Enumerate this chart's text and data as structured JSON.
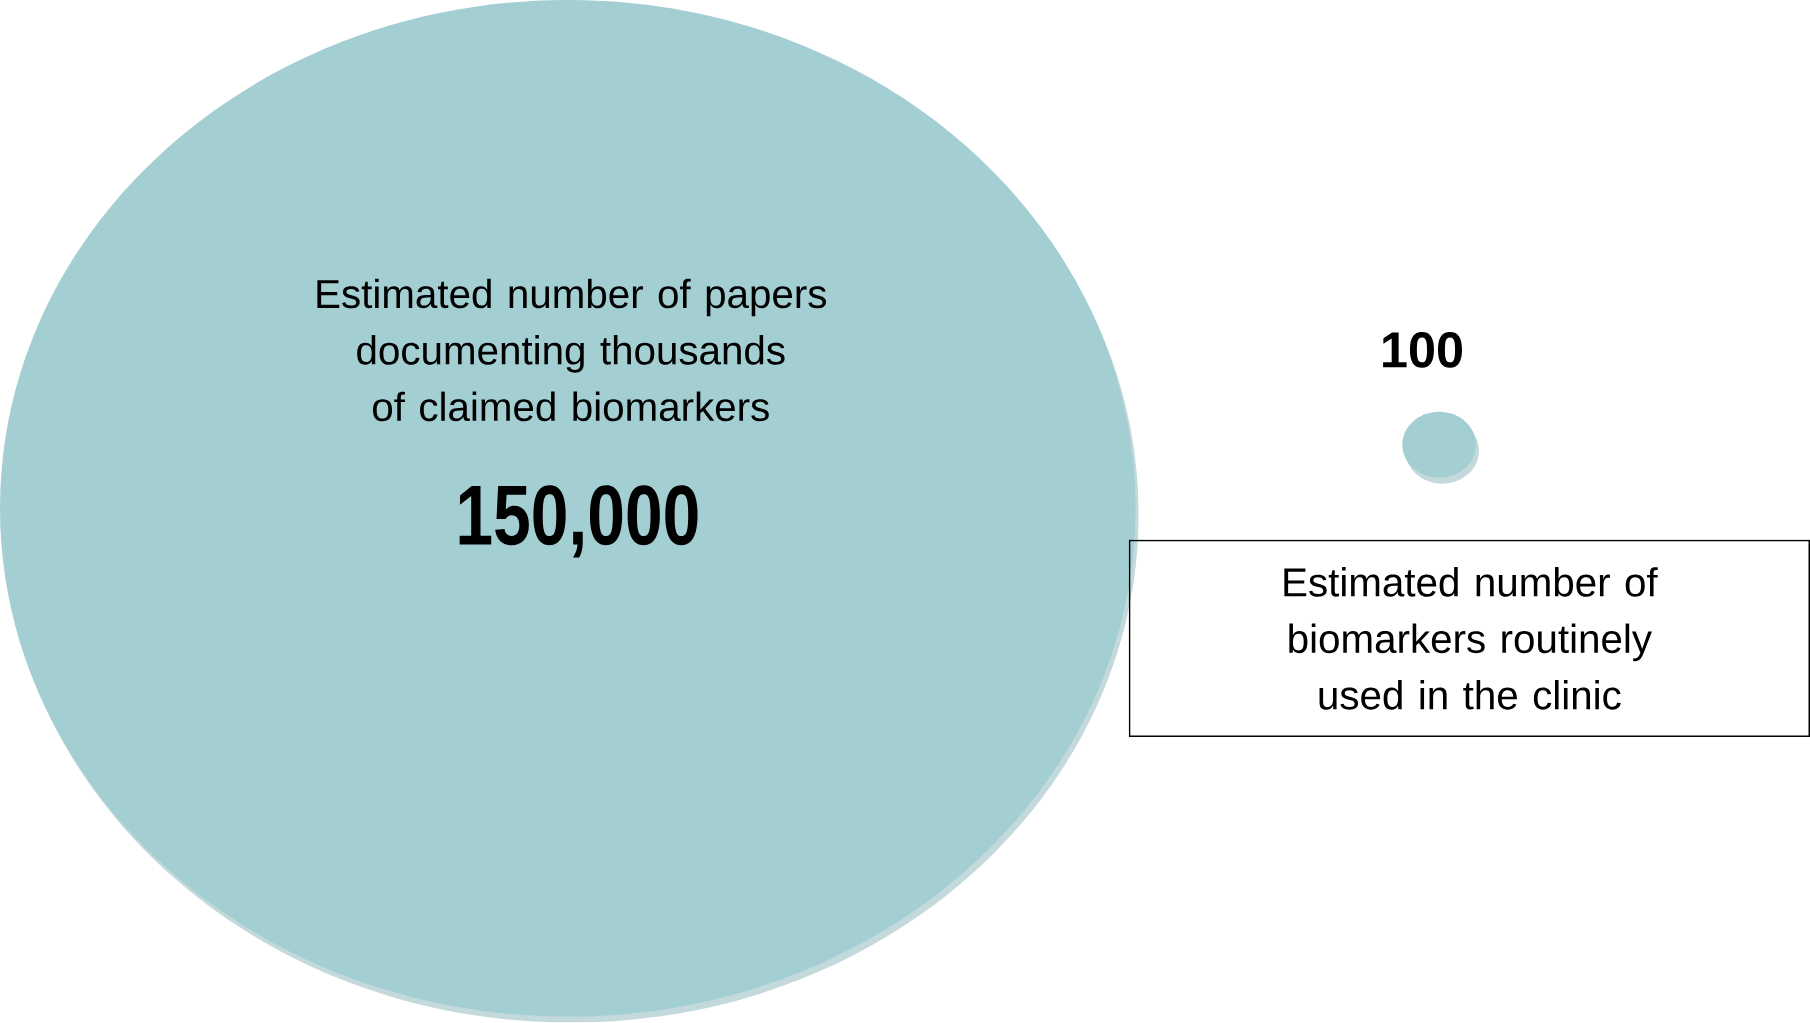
{
  "chart_data": {
    "type": "other",
    "categories": [
      "Estimated number of papers documenting thousands of claimed biomarkers",
      "Estimated number of biomarkers routinely used in the clinic"
    ],
    "values": [
      150000,
      100
    ],
    "value_labels": [
      "150,000",
      "100"
    ],
    "colors": [
      "#a3cfd3",
      "#a3cfd3"
    ]
  }
}
